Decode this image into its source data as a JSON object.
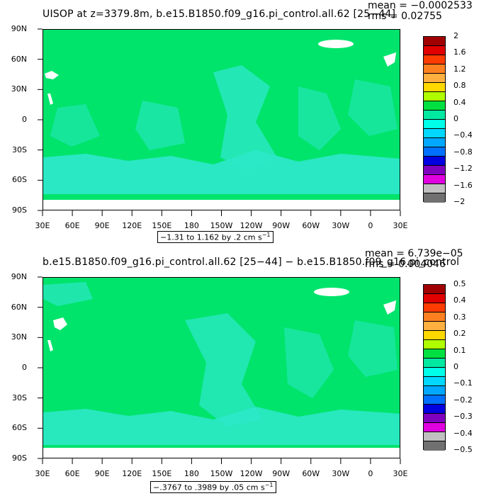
{
  "panels": [
    {
      "title": "UISOP at z=3379.8m, b.e15.B1850.f09_g16.pi_control.all.62 [25−44]",
      "mean": "mean = −0.0002533",
      "rms": "rms = 0.02755",
      "range_label": "−1.31 to 1.162 by .2 cm s",
      "range_sup": "−1",
      "colorbar_labels": [
        "2",
        "1.6",
        "1.2",
        "0.8",
        "0.4",
        "0",
        "−0.4",
        "−0.8",
        "−1.2",
        "−1.6",
        "−2"
      ]
    },
    {
      "title": "b.e15.B1850.f09_g16.pi_control.all.62 [25−44] − b.e15.B1850.f09_g16.pi_control",
      "mean": "mean = 6.739e−05",
      "rms": "rms = 0.004046",
      "range_label": "−.3767 to .3989 by .05 cm s",
      "range_sup": "−1",
      "colorbar_labels": [
        "0.5",
        "0.4",
        "0.3",
        "0.2",
        "0.1",
        "0",
        "−0.1",
        "−0.2",
        "−0.3",
        "−0.4",
        "−0.5"
      ]
    }
  ],
  "lat_labels": [
    "90N",
    "60N",
    "30N",
    "0",
    "30S",
    "60S",
    "90S"
  ],
  "lon_labels": [
    "30E",
    "60E",
    "90E",
    "120E",
    "150E",
    "180",
    "150W",
    "120W",
    "90W",
    "60W",
    "30W",
    "0",
    "30E"
  ],
  "colorbar_colors": [
    "#a00000",
    "#e00000",
    "#ff3c00",
    "#ff8020",
    "#ffb040",
    "#ffd800",
    "#b0ff00",
    "#00e040",
    "#00e9a0",
    "#00ffe8",
    "#00d8ff",
    "#00a8ff",
    "#0070ff",
    "#0000e0",
    "#8000c0",
    "#e000e0",
    "#c0c0c0",
    "#707070"
  ],
  "colors": {
    "ocean": "#00e46c",
    "speckle": "#2ce8c8",
    "land": "#ffffff"
  }
}
